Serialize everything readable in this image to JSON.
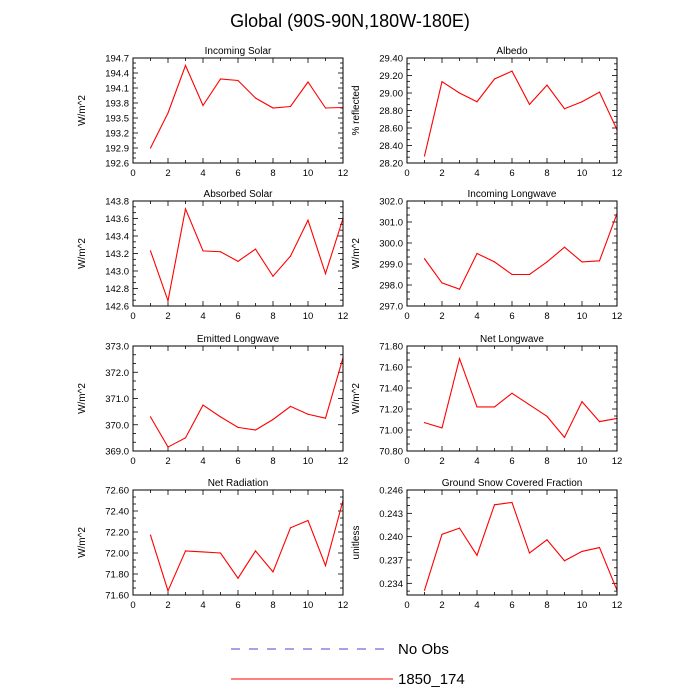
{
  "figure": {
    "title": "Global (90S-90N,180W-180E)"
  },
  "legend": [
    {
      "label": "No Obs",
      "color": "#4a4ac8",
      "dash": "dashed"
    },
    {
      "label": "1850_174",
      "color": "#ff0000",
      "dash": "solid"
    }
  ],
  "chart_data": [
    {
      "type": "line",
      "title": "Incoming Solar",
      "ylabel": "W/m^2",
      "xlim": [
        0,
        12
      ],
      "xticks": [
        0,
        2,
        4,
        6,
        8,
        10,
        12
      ],
      "ylim": [
        192.6,
        194.7
      ],
      "yticks": [
        "192.6",
        "192.9",
        "193.2",
        "193.5",
        "193.8",
        "194.1",
        "194.4",
        "194.7"
      ],
      "color": "#ff0000",
      "x": [
        1,
        2,
        3,
        4,
        5,
        6,
        7,
        8,
        9,
        10,
        11,
        12
      ],
      "y": [
        192.9,
        193.6,
        194.55,
        193.75,
        194.28,
        194.25,
        193.9,
        193.7,
        193.73,
        194.22,
        193.7,
        193.71
      ]
    },
    {
      "type": "line",
      "title": "Albedo",
      "ylabel": "% reflected",
      "xlim": [
        0,
        12
      ],
      "xticks": [
        0,
        2,
        4,
        6,
        8,
        10,
        12
      ],
      "ylim": [
        28.2,
        29.4
      ],
      "yticks": [
        "28.20",
        "28.40",
        "28.60",
        "28.80",
        "29.00",
        "29.20",
        "29.40"
      ],
      "color": "#ff0000",
      "x": [
        1,
        2,
        3,
        4,
        5,
        6,
        7,
        8,
        9,
        10,
        11,
        12
      ],
      "y": [
        28.28,
        29.13,
        29.0,
        28.9,
        29.16,
        29.25,
        28.87,
        29.09,
        28.82,
        28.9,
        29.01,
        28.58
      ]
    },
    {
      "type": "line",
      "title": "Absorbed Solar",
      "ylabel": "W/m^2",
      "xlim": [
        0,
        12
      ],
      "xticks": [
        0,
        2,
        4,
        6,
        8,
        10,
        12
      ],
      "ylim": [
        142.6,
        143.8
      ],
      "yticks": [
        "142.6",
        "142.8",
        "143.0",
        "143.2",
        "143.4",
        "143.6",
        "143.8"
      ],
      "color": "#ff0000",
      "x": [
        1,
        2,
        3,
        4,
        5,
        6,
        7,
        8,
        9,
        10,
        11,
        12
      ],
      "y": [
        143.23,
        142.66,
        143.71,
        143.23,
        143.22,
        143.11,
        143.25,
        142.94,
        143.17,
        143.58,
        142.97,
        143.6
      ]
    },
    {
      "type": "line",
      "title": "Incoming Longwave",
      "ylabel": "W/m^2",
      "xlim": [
        0,
        12
      ],
      "xticks": [
        0,
        2,
        4,
        6,
        8,
        10,
        12
      ],
      "ylim": [
        297.0,
        302.0
      ],
      "yticks": [
        "297.0",
        "298.0",
        "299.0",
        "300.0",
        "301.0",
        "302.0"
      ],
      "color": "#ff0000",
      "x": [
        1,
        2,
        3,
        4,
        5,
        6,
        7,
        8,
        9,
        10,
        11,
        12
      ],
      "y": [
        299.25,
        298.1,
        297.8,
        299.5,
        299.1,
        298.5,
        298.5,
        299.1,
        299.8,
        299.1,
        299.15,
        301.4
      ]
    },
    {
      "type": "line",
      "title": "Emitted Longwave",
      "ylabel": "W/m^2",
      "xlim": [
        0,
        12
      ],
      "xticks": [
        0,
        2,
        4,
        6,
        8,
        10,
        12
      ],
      "ylim": [
        369.0,
        373.0
      ],
      "yticks": [
        "369.0",
        "370.0",
        "371.0",
        "372.0",
        "373.0"
      ],
      "color": "#ff0000",
      "x": [
        1,
        2,
        3,
        4,
        5,
        6,
        7,
        8,
        9,
        10,
        11,
        12
      ],
      "y": [
        370.3,
        369.15,
        369.5,
        370.75,
        370.3,
        369.9,
        369.8,
        370.2,
        370.7,
        370.4,
        370.25,
        372.55
      ]
    },
    {
      "type": "line",
      "title": "Net Longwave",
      "ylabel": "W/m^2",
      "xlim": [
        0,
        12
      ],
      "xticks": [
        0,
        2,
        4,
        6,
        8,
        10,
        12
      ],
      "ylim": [
        70.8,
        71.8
      ],
      "yticks": [
        "70.80",
        "71.00",
        "71.20",
        "71.40",
        "71.60",
        "71.80"
      ],
      "color": "#ff0000",
      "x": [
        1,
        2,
        3,
        4,
        5,
        6,
        7,
        8,
        9,
        10,
        11,
        12
      ],
      "y": [
        71.07,
        71.02,
        71.68,
        71.22,
        71.22,
        71.35,
        71.24,
        71.13,
        70.93,
        71.27,
        71.08,
        71.11
      ]
    },
    {
      "type": "line",
      "title": "Net Radiation",
      "ylabel": "W/m^2",
      "xlim": [
        0,
        12
      ],
      "xticks": [
        0,
        2,
        4,
        6,
        8,
        10,
        12
      ],
      "ylim": [
        71.6,
        72.6
      ],
      "yticks": [
        "71.60",
        "71.80",
        "72.00",
        "72.20",
        "72.40",
        "72.60"
      ],
      "color": "#ff0000",
      "x": [
        1,
        2,
        3,
        4,
        5,
        6,
        7,
        8,
        9,
        10,
        11,
        12
      ],
      "y": [
        72.17,
        71.64,
        72.02,
        72.01,
        72.0,
        71.76,
        72.02,
        71.82,
        72.24,
        72.31,
        71.88,
        72.5
      ]
    },
    {
      "type": "line",
      "title": "Ground Snow Covered Fraction",
      "ylabel": "unitless",
      "xlim": [
        0,
        12
      ],
      "xticks": [
        0,
        2,
        4,
        6,
        8,
        10,
        12
      ],
      "ylim": [
        0.2325,
        0.246
      ],
      "yticks": [
        "0.234",
        "0.237",
        "0.240",
        "0.243",
        "0.246"
      ],
      "ytick_values": [
        0.234,
        0.237,
        0.24,
        0.243,
        0.246
      ],
      "color": "#ff0000",
      "x": [
        1,
        2,
        3,
        4,
        5,
        6,
        7,
        8,
        9,
        10,
        11,
        12
      ],
      "y": [
        0.2331,
        0.2403,
        0.2411,
        0.2376,
        0.2441,
        0.2444,
        0.2379,
        0.2396,
        0.2369,
        0.2381,
        0.2386,
        0.2331
      ]
    }
  ]
}
